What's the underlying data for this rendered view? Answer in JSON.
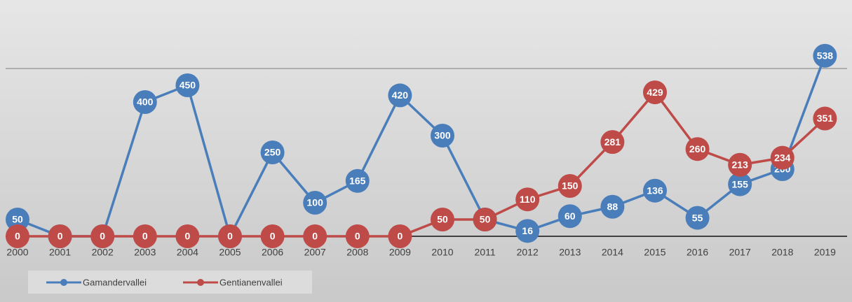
{
  "chart_data": {
    "type": "line",
    "categories": [
      "2000",
      "2001",
      "2002",
      "2003",
      "2004",
      "2005",
      "2006",
      "2007",
      "2008",
      "2009",
      "2010",
      "2011",
      "2012",
      "2013",
      "2014",
      "2015",
      "2016",
      "2017",
      "2018",
      "2019"
    ],
    "series": [
      {
        "name": "Gamandervallei",
        "color": "#4a7ebb",
        "values": [
          50,
          0,
          0,
          400,
          450,
          0,
          250,
          100,
          165,
          420,
          300,
          50,
          16,
          60,
          88,
          136,
          55,
          155,
          200,
          538
        ]
      },
      {
        "name": "Gentianenvallei",
        "color": "#be4b48",
        "values": [
          0,
          0,
          0,
          0,
          0,
          0,
          0,
          0,
          0,
          0,
          50,
          50,
          110,
          150,
          281,
          429,
          260,
          213,
          234,
          351
        ]
      }
    ],
    "ylim": [
      0,
      600
    ],
    "yticks": [
      0,
      500
    ],
    "grid": true,
    "legend": "bottom-left"
  }
}
